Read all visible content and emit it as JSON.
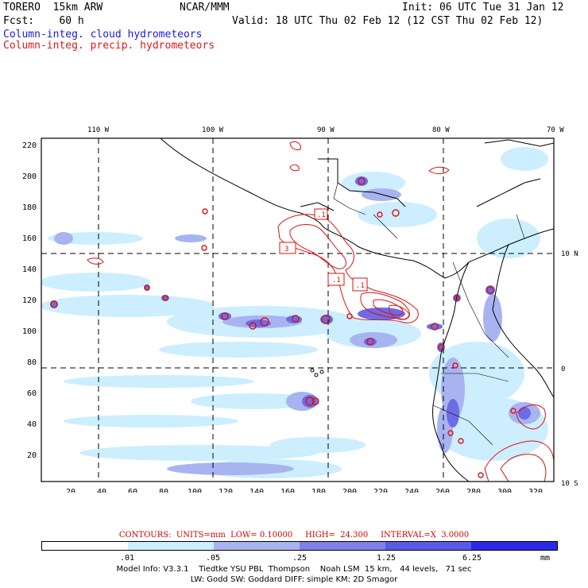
{
  "header": {
    "line1_left": "TORERO  15km ARW",
    "line1_mid": "NCAR/MMM",
    "line1_right": "Init: 06 UTC Tue 31 Jan 12",
    "line2_left": "Fcst:    60 h",
    "line2_right": "Valid: 18 UTC Thu 02 Feb 12 (12 CST Thu 02 Feb 12)",
    "field1": "Column-integ. cloud hydrometeors",
    "field2": "Column-integ. precip. hydrometeors"
  },
  "map": {
    "top_ticks": [
      "110 W",
      "100 W",
      "90 W",
      "80 W",
      "70 W"
    ],
    "left_ticks": [
      "220",
      "200",
      "180",
      "160",
      "140",
      "120",
      "100",
      "80",
      "60",
      "40",
      "20"
    ],
    "bottom_ticks": [
      "20",
      "40",
      "60",
      "80",
      "100",
      "120",
      "140",
      "160",
      "180",
      "200",
      "220",
      "240",
      "260",
      "280",
      "300",
      "320"
    ],
    "right_ticks": [
      "10 N",
      "0",
      "10 S"
    ],
    "contour_labels": [
      ".1",
      "3",
      ".1",
      ".1"
    ]
  },
  "contours_line": "CONTOURS:  UNITS=mm  LOW= 0.10000     HIGH=  24.300     INTERVAL=X  3.0000",
  "legend": {
    "colors": [
      "#ffffff",
      "#cceeff",
      "#a8b4f0",
      "#8080e8",
      "#5a5ae4",
      "#2a2ae6"
    ],
    "ticks": [
      ".01",
      ".05",
      ".25",
      "1.25",
      "6.25"
    ],
    "unit": "mm"
  },
  "model_info": {
    "line1": "Model Info: V3.3.1    Tiedtke YSU PBL  Thompson    Noah LSM  15 km,   44 levels,   71 sec",
    "line2": "LW: Godd SW: Goddard DIFF: simple KM: 2D Smagor"
  }
}
